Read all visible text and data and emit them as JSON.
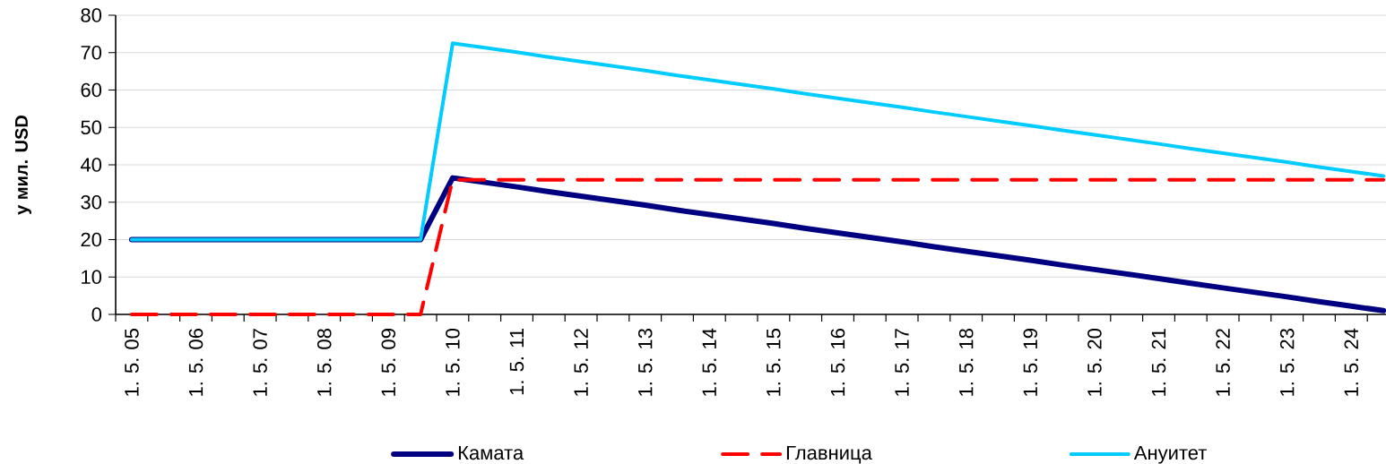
{
  "chart_data": {
    "type": "line",
    "ylabel": "у мил. USD",
    "categories": [
      "1. 5. 05",
      null,
      "1. 5. 06",
      null,
      "1. 5. 07",
      null,
      "1. 5. 08",
      null,
      "1. 5. 09",
      null,
      "1. 5. 10",
      null,
      "1. 5. 11",
      null,
      "1. 5. 12",
      null,
      "1. 5. 13",
      null,
      "1. 5. 14",
      null,
      "1. 5. 15",
      null,
      "1. 5. 16",
      null,
      "1. 5. 17",
      null,
      "1. 5. 18",
      null,
      "1. 5. 19",
      null,
      "1. 5. 20",
      null,
      "1. 5. 21",
      null,
      "1. 5. 22",
      null,
      "1. 5. 23",
      null,
      "1. 5. 24",
      null
    ],
    "series": [
      {
        "name": "Камата",
        "color": "#000080",
        "line_style": "solid",
        "values": [
          20,
          20,
          20,
          20,
          20,
          20,
          20,
          20,
          20,
          20,
          36.5,
          35.3,
          34.1,
          32.8,
          31.6,
          30.4,
          29.2,
          27.9,
          26.7,
          25.5,
          24.3,
          23.0,
          21.8,
          20.6,
          19.4,
          18.1,
          16.9,
          15.7,
          14.5,
          13.2,
          12.0,
          10.8,
          9.6,
          8.3,
          7.1,
          5.9,
          4.7,
          3.4,
          2.2,
          1.0
        ]
      },
      {
        "name": "Главница",
        "color": "#ff0000",
        "line_style": "dashed",
        "values": [
          0,
          0,
          0,
          0,
          0,
          0,
          0,
          0,
          0,
          0,
          36,
          36,
          36,
          36,
          36,
          36,
          36,
          36,
          36,
          36,
          36,
          36,
          36,
          36,
          36,
          36,
          36,
          36,
          36,
          36,
          36,
          36,
          36,
          36,
          36,
          36,
          36,
          36,
          36,
          36
        ]
      },
      {
        "name": "Ануитет",
        "color": "#00ccff",
        "line_style": "solid",
        "values": [
          20,
          20,
          20,
          20,
          20,
          20,
          20,
          20,
          20,
          20,
          72.5,
          71.3,
          70.1,
          68.8,
          67.6,
          66.4,
          65.2,
          63.9,
          62.7,
          61.5,
          60.3,
          59.0,
          57.8,
          56.6,
          55.4,
          54.1,
          52.9,
          51.7,
          50.5,
          49.2,
          48.0,
          46.8,
          45.6,
          44.3,
          43.1,
          41.9,
          40.7,
          39.4,
          38.2,
          37.0
        ]
      }
    ],
    "ylim": [
      0,
      80
    ],
    "yticks": [
      0,
      10,
      20,
      30,
      40,
      50,
      60,
      70,
      80
    ],
    "grid": "y",
    "legend": "bottom",
    "marker": "none"
  }
}
